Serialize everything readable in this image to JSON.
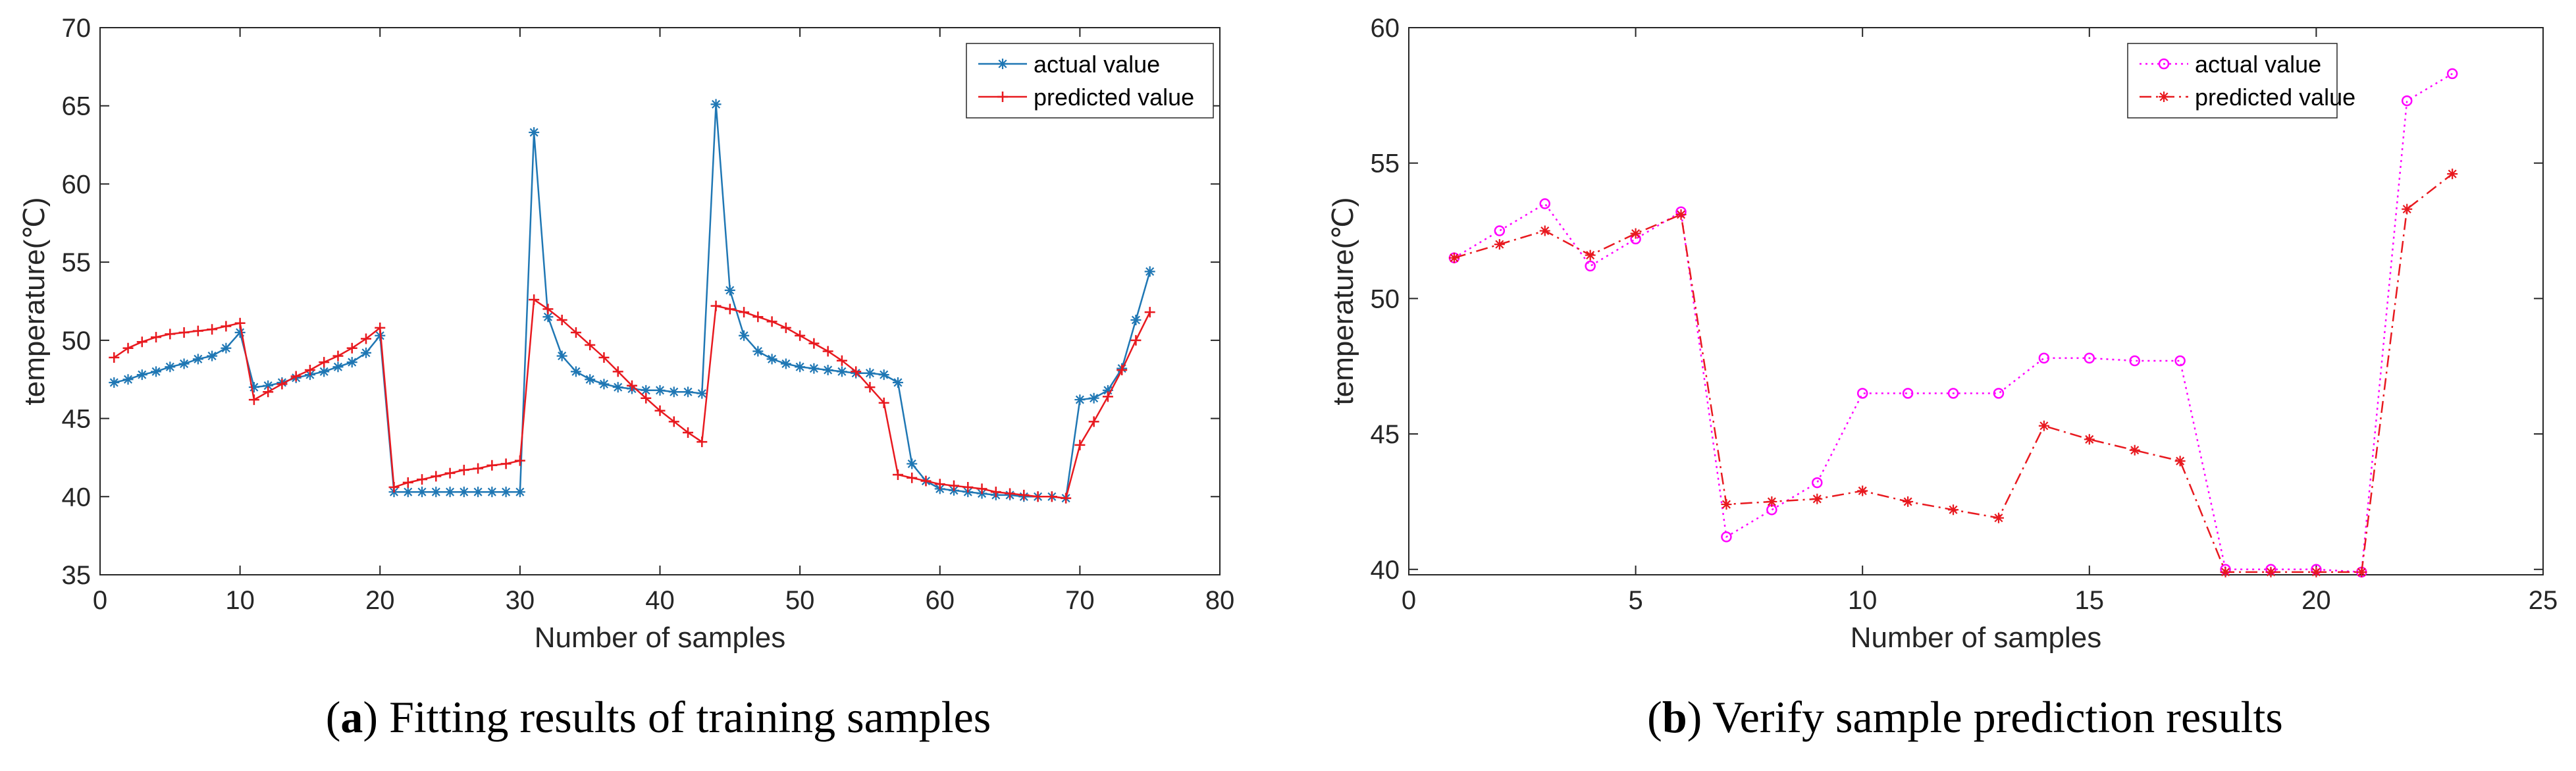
{
  "chart_data": [
    {
      "type": "line",
      "panel": "a",
      "caption": "Fitting results of training samples",
      "caption_letter": "a",
      "xlabel": "Number of samples",
      "ylabel": "temperature(℃)",
      "xlim": [
        0,
        80
      ],
      "ylim": [
        35,
        70
      ],
      "xticks": [
        0,
        10,
        20,
        30,
        40,
        50,
        60,
        70,
        80
      ],
      "yticks": [
        35,
        40,
        45,
        50,
        55,
        60,
        65,
        70
      ],
      "legend_position": "top-right",
      "series": [
        {
          "name": "actual value",
          "color": "#1f77b4",
          "marker": "asterisk",
          "linestyle": "solid",
          "x": [
            1,
            2,
            3,
            4,
            5,
            6,
            7,
            8,
            9,
            10,
            11,
            12,
            13,
            14,
            15,
            16,
            17,
            18,
            19,
            20,
            21,
            22,
            23,
            24,
            25,
            26,
            27,
            28,
            29,
            30,
            31,
            32,
            33,
            34,
            35,
            36,
            37,
            38,
            39,
            40,
            41,
            42,
            43,
            44,
            45,
            46,
            47,
            48,
            49,
            50,
            51,
            52,
            53,
            54,
            55,
            56,
            57,
            58,
            59,
            60,
            61,
            62,
            63,
            64,
            65,
            66,
            67,
            68,
            69,
            70,
            71,
            72,
            73,
            74,
            75
          ],
          "y": [
            47.3,
            47.5,
            47.8,
            48.0,
            48.3,
            48.5,
            48.8,
            49.0,
            49.5,
            50.5,
            47.0,
            47.1,
            47.3,
            47.6,
            47.8,
            48.0,
            48.3,
            48.6,
            49.2,
            50.3,
            40.3,
            40.3,
            40.3,
            40.3,
            40.3,
            40.3,
            40.3,
            40.3,
            40.3,
            40.3,
            63.3,
            51.5,
            49.0,
            48.0,
            47.5,
            47.2,
            47.0,
            46.9,
            46.8,
            46.8,
            46.7,
            46.7,
            46.6,
            65.1,
            53.2,
            50.3,
            49.3,
            48.8,
            48.5,
            48.3,
            48.2,
            48.1,
            48.0,
            47.9,
            47.9,
            47.8,
            47.3,
            42.1,
            41.0,
            40.5,
            40.4,
            40.3,
            40.2,
            40.1,
            40.1,
            40.0,
            40.0,
            40.0,
            39.9,
            46.2,
            46.3,
            46.8,
            48.2,
            51.3,
            54.4
          ]
        },
        {
          "name": "predicted value",
          "color": "#e8191f",
          "marker": "plus",
          "linestyle": "solid",
          "x": [
            1,
            2,
            3,
            4,
            5,
            6,
            7,
            8,
            9,
            10,
            11,
            12,
            13,
            14,
            15,
            16,
            17,
            18,
            19,
            20,
            21,
            22,
            23,
            24,
            25,
            26,
            27,
            28,
            29,
            30,
            31,
            32,
            33,
            34,
            35,
            36,
            37,
            38,
            39,
            40,
            41,
            42,
            43,
            44,
            45,
            46,
            47,
            48,
            49,
            50,
            51,
            52,
            53,
            54,
            55,
            56,
            57,
            58,
            59,
            60,
            61,
            62,
            63,
            64,
            65,
            66,
            67,
            68,
            69,
            70,
            71,
            72,
            73,
            74,
            75
          ],
          "y": [
            48.9,
            49.5,
            49.9,
            50.2,
            50.4,
            50.5,
            50.6,
            50.7,
            50.9,
            51.1,
            46.2,
            46.7,
            47.2,
            47.7,
            48.1,
            48.6,
            49.0,
            49.5,
            50.1,
            50.8,
            40.6,
            40.9,
            41.1,
            41.3,
            41.5,
            41.7,
            41.8,
            42.0,
            42.1,
            42.3,
            52.6,
            52.0,
            51.3,
            50.5,
            49.7,
            48.9,
            48.0,
            47.1,
            46.3,
            45.5,
            44.8,
            44.1,
            43.5,
            52.2,
            52.0,
            51.8,
            51.5,
            51.2,
            50.8,
            50.3,
            49.8,
            49.3,
            48.7,
            48.0,
            47.0,
            46.0,
            41.4,
            41.2,
            41.0,
            40.8,
            40.7,
            40.6,
            40.5,
            40.3,
            40.2,
            40.1,
            40.0,
            40.0,
            39.9,
            43.3,
            44.8,
            46.4,
            48.1,
            50.0,
            51.8
          ]
        }
      ]
    },
    {
      "type": "line",
      "panel": "b",
      "caption": "Verify sample prediction results",
      "caption_letter": "b",
      "xlabel": "Number of samples",
      "ylabel": "temperature(℃)",
      "xlim": [
        0,
        25
      ],
      "ylim": [
        39.8,
        60
      ],
      "xticks": [
        0,
        5,
        10,
        15,
        20,
        25
      ],
      "yticks": [
        40,
        45,
        50,
        55,
        60
      ],
      "legend_position": "top-right",
      "series": [
        {
          "name": "actual value",
          "color": "#ff00ff",
          "marker": "circle",
          "linestyle": "dotted",
          "x": [
            1,
            2,
            3,
            4,
            5,
            6,
            7,
            8,
            9,
            10,
            11,
            12,
            13,
            14,
            15,
            16,
            17,
            18,
            19,
            20,
            21,
            22,
            23
          ],
          "y": [
            51.5,
            52.5,
            53.5,
            51.2,
            52.2,
            53.2,
            41.2,
            42.2,
            43.2,
            46.5,
            46.5,
            46.5,
            46.5,
            47.8,
            47.8,
            47.7,
            47.7,
            40.0,
            40.0,
            40.0,
            39.9,
            57.3,
            58.3
          ]
        },
        {
          "name": "predicted value",
          "color": "#e8191f",
          "marker": "asterisk",
          "linestyle": "dashdot",
          "x": [
            1,
            2,
            3,
            4,
            5,
            6,
            7,
            8,
            9,
            10,
            11,
            12,
            13,
            14,
            15,
            16,
            17,
            18,
            19,
            20,
            21,
            22,
            23
          ],
          "y": [
            51.5,
            52.0,
            52.5,
            51.6,
            52.4,
            53.1,
            42.4,
            42.5,
            42.6,
            42.9,
            42.5,
            42.2,
            41.9,
            45.3,
            44.8,
            44.4,
            44.0,
            39.9,
            39.9,
            39.9,
            39.9,
            53.3,
            54.6
          ]
        }
      ]
    }
  ]
}
